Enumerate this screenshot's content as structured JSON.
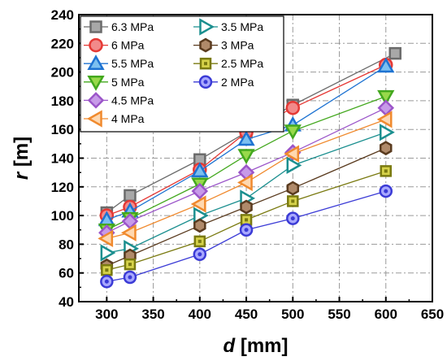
{
  "chart_data": {
    "type": "line",
    "xlabel": {
      "symbol": "d",
      "unit": " [mm]"
    },
    "ylabel": {
      "symbol": "r",
      "unit": " [m]"
    },
    "xlim": [
      270,
      650
    ],
    "ylim": [
      40,
      240
    ],
    "xticks": [
      300,
      350,
      400,
      450,
      500,
      550,
      600,
      650
    ],
    "yticks": [
      40,
      60,
      80,
      100,
      120,
      140,
      160,
      180,
      200,
      220,
      240
    ],
    "grid": true,
    "legend_placement": "top-left",
    "series": [
      {
        "name": "6.3 MPa",
        "marker": "square",
        "color": "#6b6b6b",
        "fill": "#a8a8a8",
        "x": [
          300,
          325,
          400,
          450,
          500,
          610
        ],
        "y": [
          102,
          114,
          139,
          158,
          177,
          213
        ]
      },
      {
        "name": "6 MPa",
        "marker": "circle",
        "color": "#e53935",
        "fill": "#f28a8a",
        "x": [
          300,
          325,
          400,
          450,
          500,
          600
        ],
        "y": [
          100,
          106,
          132,
          158,
          175,
          205
        ]
      },
      {
        "name": "5.5 MPa",
        "marker": "triangle-up",
        "color": "#1e73d2",
        "fill": "#7cc0f0",
        "x": [
          300,
          325,
          400,
          450,
          500,
          600
        ],
        "y": [
          97,
          103,
          131,
          153,
          163,
          204
        ]
      },
      {
        "name": "5 MPa",
        "marker": "triangle-down",
        "color": "#43a81e",
        "fill": "#98d94a",
        "x": [
          300,
          325,
          400,
          450,
          500,
          600
        ],
        "y": [
          90,
          98,
          122,
          142,
          159,
          183
        ]
      },
      {
        "name": "4.5 MPa",
        "marker": "diamond",
        "color": "#9b55c9",
        "fill": "#c79ae8",
        "x": [
          300,
          325,
          400,
          450,
          500,
          600
        ],
        "y": [
          88,
          96,
          117,
          130,
          144,
          175
        ]
      },
      {
        "name": "4 MPa",
        "marker": "triangle-left",
        "color": "#f08a2e",
        "fill": "#ffd8b0",
        "x": [
          300,
          325,
          400,
          450,
          500,
          600
        ],
        "y": [
          84,
          88,
          108,
          123,
          143,
          167
        ]
      },
      {
        "name": "3.5 MPa",
        "marker": "triangle-right",
        "color": "#1b8f8f",
        "fill": "#ffffff",
        "x": [
          300,
          325,
          400,
          450,
          500,
          600
        ],
        "y": [
          74,
          77,
          100,
          112,
          135,
          158
        ]
      },
      {
        "name": "3 MPa",
        "marker": "hexagon",
        "color": "#5a3b1f",
        "fill": "#b08a6a",
        "x": [
          300,
          325,
          400,
          450,
          500,
          600
        ],
        "y": [
          65,
          72,
          93,
          106,
          119,
          147
        ]
      },
      {
        "name": "2.5 MPa",
        "marker": "square-dot",
        "color": "#7a7a10",
        "fill": "#d6d24a",
        "x": [
          300,
          325,
          400,
          450,
          500,
          600
        ],
        "y": [
          62,
          66,
          82,
          97,
          110,
          131
        ]
      },
      {
        "name": "2 MPa",
        "marker": "circle-dot",
        "color": "#3b3bd6",
        "fill": "#a8a8ff",
        "x": [
          300,
          325,
          400,
          450,
          500,
          600
        ],
        "y": [
          54,
          57,
          73,
          90,
          98,
          117
        ]
      }
    ]
  }
}
